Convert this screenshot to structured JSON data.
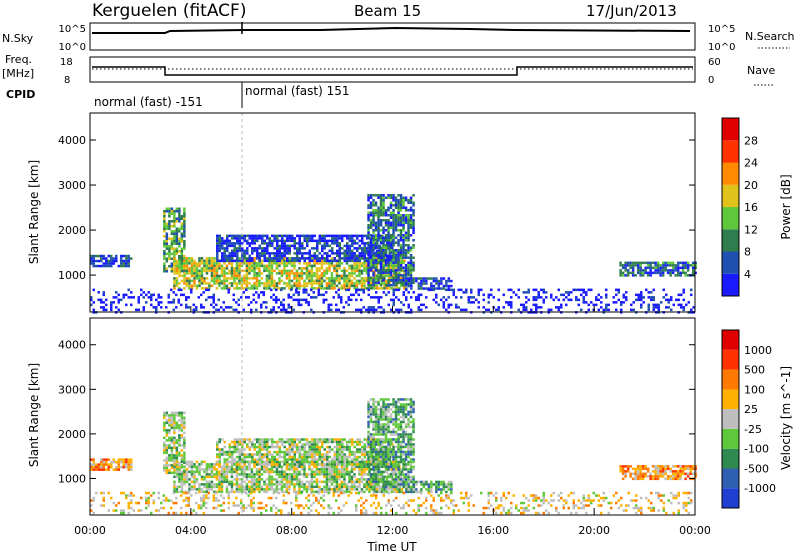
{
  "header": {
    "station": "Kerguelen (fitACF)",
    "beam": "Beam 15",
    "date": "17/Jun/2013"
  },
  "top_panels": {
    "nsky_label": "N.Sky",
    "nsky_ticks": [
      "10^5",
      "10^0"
    ],
    "nsearch_label": "N.Search",
    "nsearch_ticks": [
      "10^5",
      "10^0"
    ],
    "freq_label_line1": "Freq.",
    "freq_label_line2": "[MHz]",
    "freq_ticks": [
      "18",
      "8"
    ],
    "nave_label": "Nave",
    "nave_ticks": [
      "60",
      "0"
    ],
    "cpid_label": "CPID",
    "cpid_segments": [
      {
        "label": "normal (fast) -151",
        "start_hour": 0,
        "end_hour": 6
      },
      {
        "label": "normal (fast) 151",
        "start_hour": 6,
        "end_hour": 24
      }
    ]
  },
  "x_axis": {
    "label": "Time UT",
    "ticks": [
      "00:00",
      "04:00",
      "08:00",
      "12:00",
      "16:00",
      "20:00",
      "00:00"
    ]
  },
  "chart_data": [
    {
      "type": "heatmap",
      "panel": "power",
      "xlabel": "Time UT",
      "ylabel": "Slant Range [km]",
      "xlim": [
        0,
        24
      ],
      "ylim": [
        180,
        4600
      ],
      "yticks": [
        "1000",
        "2000",
        "3000",
        "4000"
      ],
      "colorbar": {
        "title": "Power [dB]",
        "ticks": [
          "4",
          "8",
          "12",
          "16",
          "20",
          "24",
          "28"
        ],
        "colors": [
          "#1a1aff",
          "#1f4fb0",
          "#2f7d4f",
          "#5fc83a",
          "#e0c21a",
          "#ff8a00",
          "#ff3300",
          "#e00000"
        ]
      },
      "echo_regions": [
        {
          "t0": 0.0,
          "t1": 1.6,
          "r0": 1200,
          "r1": 1450,
          "level": 1
        },
        {
          "t0": 2.9,
          "t1": 3.7,
          "r0": 1100,
          "r1": 2500,
          "level": 3
        },
        {
          "t0": 3.3,
          "t1": 12.5,
          "r0": 700,
          "r1": 1400,
          "level": 4
        },
        {
          "t0": 5.0,
          "t1": 12.0,
          "r0": 1300,
          "r1": 1900,
          "level": 1
        },
        {
          "t0": 11.0,
          "t1": 12.8,
          "r0": 800,
          "r1": 2800,
          "level": 2
        },
        {
          "t0": 12.5,
          "t1": 14.3,
          "r0": 700,
          "r1": 950,
          "level": 1
        },
        {
          "t0": 21.0,
          "t1": 24.0,
          "r0": 1000,
          "r1": 1300,
          "level": 2
        },
        {
          "t0": 0.0,
          "t1": 24.0,
          "r0": 200,
          "r1": 700,
          "level": 0
        }
      ]
    },
    {
      "type": "heatmap",
      "panel": "velocity",
      "xlabel": "Time UT",
      "ylabel": "Slant Range [km]",
      "xlim": [
        0,
        24
      ],
      "ylim": [
        180,
        4600
      ],
      "yticks": [
        "1000",
        "2000",
        "3000",
        "4000"
      ],
      "colorbar": {
        "title": "Velocity [m s^-1]",
        "ticks": [
          "1000",
          "500",
          "100",
          "25",
          "-25",
          "-100",
          "-500",
          "-1000"
        ],
        "colors": [
          "#1f3fd0",
          "#2f5fb0",
          "#2f8a4f",
          "#5fc83a",
          "#bebebe",
          "#ffb000",
          "#ff7a00",
          "#ff3300",
          "#e00000"
        ]
      },
      "echo_regions": [
        {
          "t0": 0.0,
          "t1": 1.6,
          "r0": 1200,
          "r1": 1450,
          "level": 6
        },
        {
          "t0": 2.9,
          "t1": 3.7,
          "r0": 1100,
          "r1": 2500,
          "level": 4
        },
        {
          "t0": 3.3,
          "t1": 12.5,
          "r0": 700,
          "r1": 1400,
          "level": 4
        },
        {
          "t0": 5.0,
          "t1": 12.0,
          "r0": 1300,
          "r1": 1900,
          "level": 4
        },
        {
          "t0": 11.0,
          "t1": 12.8,
          "r0": 800,
          "r1": 2800,
          "level": 3
        },
        {
          "t0": 12.5,
          "t1": 14.3,
          "r0": 700,
          "r1": 950,
          "level": 3
        },
        {
          "t0": 21.0,
          "t1": 24.0,
          "r0": 1000,
          "r1": 1300,
          "level": 6
        },
        {
          "t0": 0.0,
          "t1": 24.0,
          "r0": 200,
          "r1": 700,
          "level": 5
        }
      ]
    }
  ]
}
